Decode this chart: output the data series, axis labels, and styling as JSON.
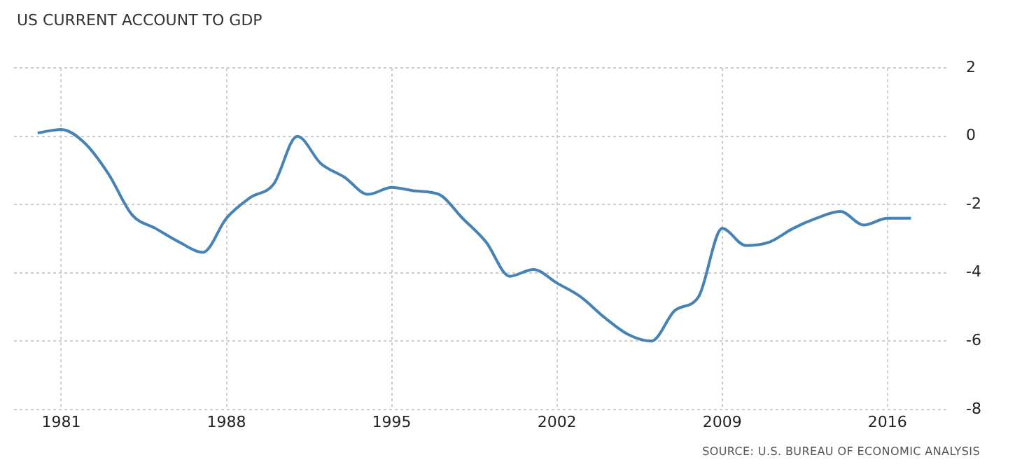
{
  "chart_data": {
    "type": "line",
    "title": "US CURRENT ACCOUNT TO GDP",
    "x": [
      1980,
      1981,
      1982,
      1983,
      1984,
      1985,
      1986,
      1987,
      1988,
      1989,
      1990,
      1991,
      1992,
      1993,
      1994,
      1995,
      1996,
      1997,
      1998,
      1999,
      2000,
      2001,
      2002,
      2003,
      2004,
      2005,
      2006,
      2007,
      2008,
      2009,
      2010,
      2011,
      2012,
      2013,
      2014,
      2015,
      2016,
      2017
    ],
    "series": [
      {
        "color": "#4682b4",
        "values": [
          0.1,
          0.2,
          -0.2,
          -1.1,
          -2.3,
          -2.7,
          -3.1,
          -3.4,
          -2.4,
          -1.8,
          -1.4,
          0.0,
          -0.8,
          -1.2,
          -1.7,
          -1.5,
          -1.6,
          -1.7,
          -2.4,
          -3.1,
          -4.1,
          -3.9,
          -4.3,
          -4.7,
          -5.3,
          -5.8,
          -6.0,
          -5.1,
          -4.7,
          -2.7,
          -3.2,
          -3.1,
          -2.7,
          -2.4,
          -2.2,
          -2.6,
          -2.4,
          -2.4
        ]
      }
    ],
    "xlim": [
      1979,
      2018.5
    ],
    "xticks": [
      1981,
      1988,
      1995,
      2002,
      2009,
      2016
    ],
    "ylim": [
      -8,
      2
    ],
    "yticks": [
      -8,
      -6,
      -4,
      -2,
      0,
      2
    ],
    "grid": true,
    "legend": false,
    "annotations": [
      "SOURCE: U.S. BUREAU OF ECONOMIC ANALYSIS"
    ]
  }
}
